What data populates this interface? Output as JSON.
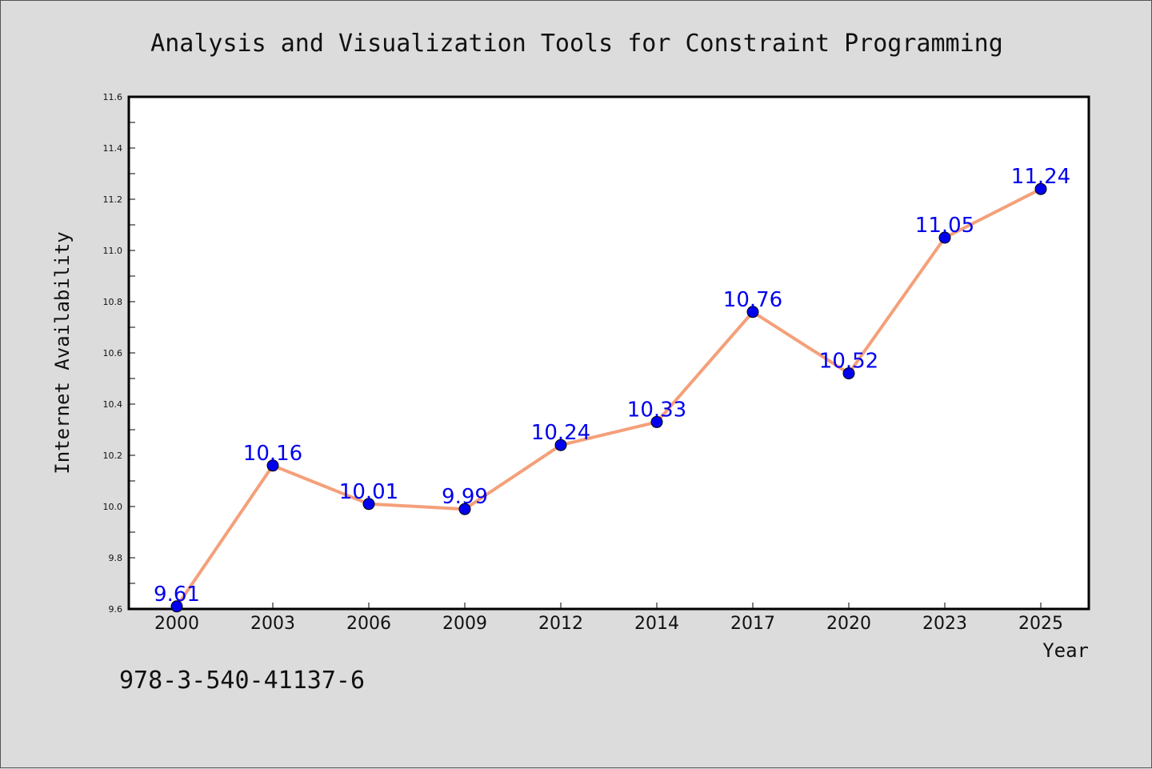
{
  "chart_data": {
    "type": "line",
    "title": "Analysis and Visualization Tools for Constraint Programming",
    "xlabel": "Year",
    "ylabel": "Internet Availability",
    "categories": [
      "2000",
      "2003",
      "2006",
      "2009",
      "2012",
      "2014",
      "2017",
      "2020",
      "2023",
      "2025"
    ],
    "series": [
      {
        "values": [
          9.61,
          10.16,
          10.01,
          9.99,
          10.24,
          10.33,
          10.76,
          10.52,
          11.05,
          11.24
        ],
        "data_labels": [
          "9.61",
          "10.16",
          "10.01",
          "9.99",
          "10.24",
          "10.33",
          "10.76",
          "10.52",
          "11.05",
          "11.24"
        ],
        "line_color": "#f4a07a",
        "marker_color": "#0000ee"
      }
    ],
    "ylim": [
      9.6,
      11.6
    ],
    "yticks": [
      "9.6",
      "9.8",
      "10.0",
      "10.2",
      "10.4",
      "10.6",
      "10.8",
      "11.0",
      "11.2",
      "11.4",
      "11.6"
    ],
    "grid": false,
    "legend": "none"
  },
  "footer": {
    "isbn": "978-3-540-41137-6"
  }
}
